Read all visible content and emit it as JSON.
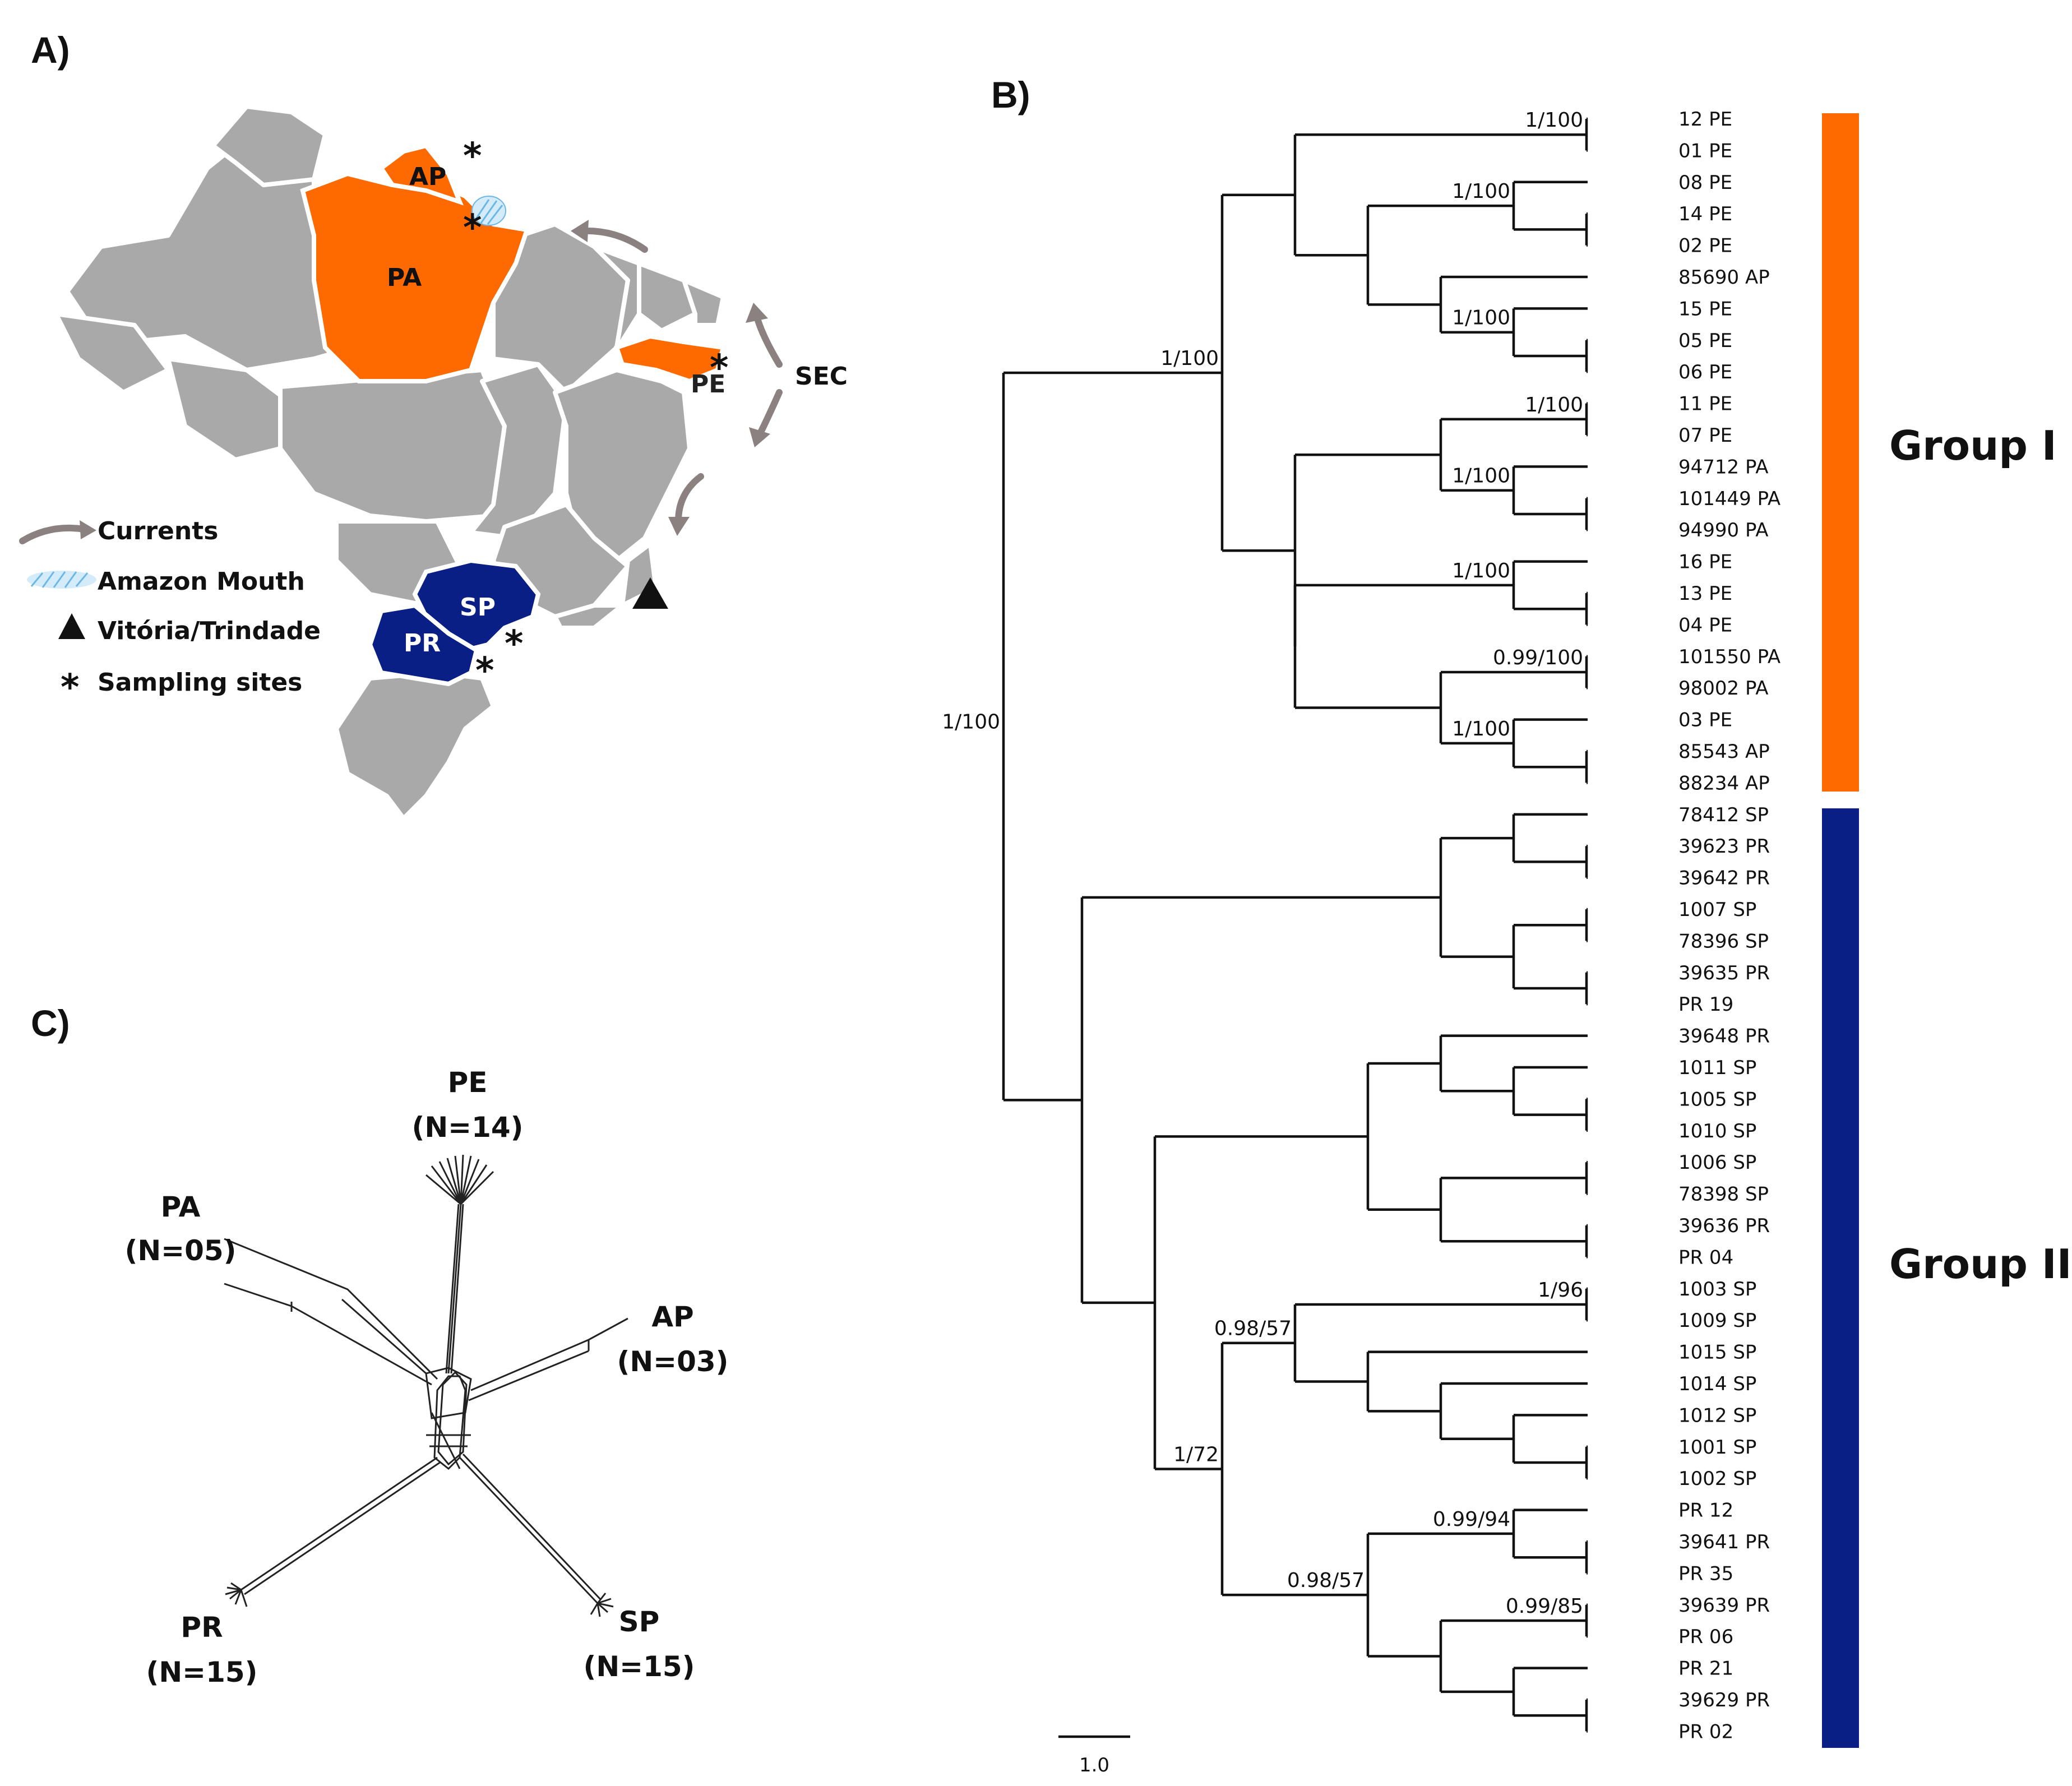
{
  "panels": {
    "a": "A)",
    "b": "B)",
    "c": "C)"
  },
  "map": {
    "states": [
      "AP",
      "PA",
      "PE",
      "SP",
      "PR"
    ],
    "current_label": "SEC",
    "legend": [
      {
        "icon": "curved-arrow-icon",
        "label": "Currents"
      },
      {
        "icon": "hatch-icon",
        "label": "Amazon Mouth"
      },
      {
        "icon": "triangle-icon",
        "label": "Vitória/Trindade"
      },
      {
        "icon": "asterisk-icon",
        "label": "Sampling sites"
      }
    ],
    "colors": {
      "land": "#a9a9a9",
      "group1": "#ff6a00",
      "group2": "#0a1f86",
      "current": "#8a8180"
    }
  },
  "tree": {
    "tips": [
      "12 PE",
      "01 PE",
      "08 PE",
      "14 PE",
      "02 PE",
      "85690 AP",
      "15 PE",
      "05 PE",
      "06 PE",
      "11 PE",
      "07 PE",
      "94712 PA",
      "101449 PA",
      "94990 PA",
      "16 PE",
      "13 PE",
      "04 PE",
      "101550 PA",
      "98002 PA",
      "03 PE",
      "85543 AP",
      "88234 AP",
      "78412 SP",
      "39623 PR",
      "39642 PR",
      "1007 SP",
      "78396 SP",
      "39635 PR",
      "PR 19",
      "39648 PR",
      "1011 SP",
      "1005 SP",
      "1010 SP",
      "1006 SP",
      "78398 SP",
      "39636 PR",
      "PR 04",
      "1003 SP",
      "1009 SP",
      "1015 SP",
      "1014 SP",
      "1012 SP",
      "1001 SP",
      "1002 SP",
      "PR 12",
      "39641 PR",
      "PR 35",
      "39639 PR",
      "PR 06",
      "PR 21",
      "39629 PR",
      "PR 02"
    ],
    "supports": [
      {
        "node": "n1",
        "label": "1/100"
      },
      {
        "node": "n2",
        "label": "1/100"
      },
      {
        "node": "n3",
        "label": "1/100"
      },
      {
        "node": "n4",
        "label": "1/100"
      },
      {
        "node": "n5",
        "label": "1/100"
      },
      {
        "node": "n6",
        "label": "1/100"
      },
      {
        "node": "n7",
        "label": "1/100"
      },
      {
        "node": "n8",
        "label": "0.99/100"
      },
      {
        "node": "n9",
        "label": "1/100"
      },
      {
        "node": "n10",
        "label": "1/100"
      },
      {
        "node": "n11",
        "label": "1/96"
      },
      {
        "node": "n12",
        "label": "0.98/57"
      },
      {
        "node": "n13",
        "label": "1/72"
      },
      {
        "node": "n14",
        "label": "0.99/94"
      },
      {
        "node": "n15",
        "label": "0.98/57"
      },
      {
        "node": "n16",
        "label": "0.99/85"
      }
    ],
    "scale_label": "1.0",
    "groups": [
      {
        "label": "Group I",
        "color": "#ff6a00"
      },
      {
        "label": "Group II",
        "color": "#0a1f86"
      }
    ]
  },
  "network": {
    "nodes": [
      {
        "name": "PE",
        "n": "(N=14)"
      },
      {
        "name": "PA",
        "n": "(N=05)"
      },
      {
        "name": "AP",
        "n": "(N=03)"
      },
      {
        "name": "PR",
        "n": "(N=15)"
      },
      {
        "name": "SP",
        "n": "(N=15)"
      }
    ]
  }
}
